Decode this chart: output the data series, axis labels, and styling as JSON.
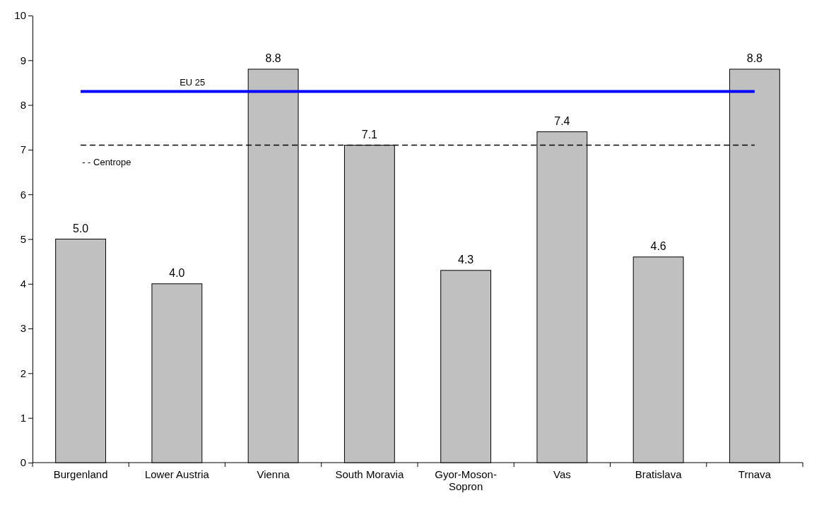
{
  "chart_data": {
    "type": "bar",
    "categories": [
      "Burgenland",
      "Lower Austria",
      "Vienna",
      "South Moravia",
      "Gyor-Moson-Sopron",
      "Vas",
      "Bratislava",
      "Trnava"
    ],
    "values": [
      5.0,
      4.0,
      8.8,
      7.1,
      4.3,
      7.4,
      4.6,
      8.8
    ],
    "color": "#c0c0c0",
    "ylim": [
      0,
      10
    ],
    "yticks": [
      0,
      1,
      2,
      3,
      4,
      5,
      6,
      7,
      8,
      9,
      10
    ],
    "value_labels": [
      "5.0",
      "4.0",
      "8.8",
      "7.1",
      "4.3",
      "7.4",
      "4.6",
      "8.8"
    ],
    "grid": false,
    "ref_lines": [
      {
        "axis": "y",
        "value": 8.3,
        "label": "EU 25",
        "color": "#0000ff",
        "line_style": "solid"
      },
      {
        "axis": "y",
        "value": 7.1,
        "label": "- - Centrope",
        "color": "#000000",
        "line_style": "dashed"
      }
    ]
  }
}
